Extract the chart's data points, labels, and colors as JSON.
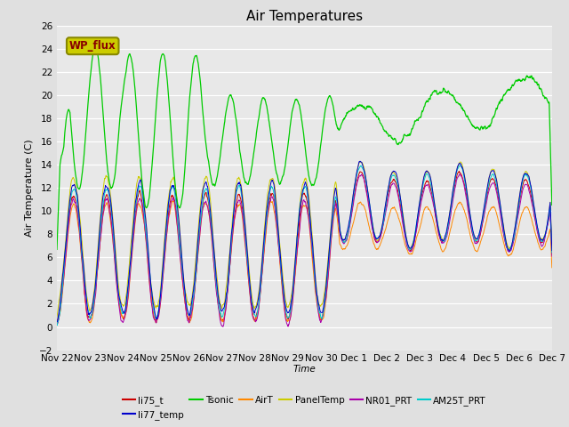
{
  "title": "Air Temperatures",
  "xlabel": "Time",
  "ylabel": "Air Temperature (C)",
  "ylim": [
    -2,
    26
  ],
  "yticks": [
    -2,
    0,
    2,
    4,
    6,
    8,
    10,
    12,
    14,
    16,
    18,
    20,
    22,
    24,
    26
  ],
  "x_tick_labels": [
    "Nov 22",
    "Nov 23",
    "Nov 24",
    "Nov 25",
    "Nov 26",
    "Nov 27",
    "Nov 28",
    "Nov 29",
    "Nov 30",
    "Dec 1",
    "Dec 2",
    "Dec 3",
    "Dec 4",
    "Dec 5",
    "Dec 6",
    "Dec 7"
  ],
  "series_colors": {
    "li75_t": "#cc0000",
    "li77_temp": "#0000cc",
    "Tsonic": "#00cc00",
    "AirT": "#ff8800",
    "PanelTemp": "#cccc00",
    "NR01_PRT": "#aa00aa",
    "AM25T_PRT": "#00cccc"
  },
  "background_color": "#e0e0e0",
  "plot_background": "#e8e8e8",
  "wp_flux_box_facecolor": "#cccc00",
  "wp_flux_text_color": "#880000",
  "wp_flux_edge_color": "#888800"
}
